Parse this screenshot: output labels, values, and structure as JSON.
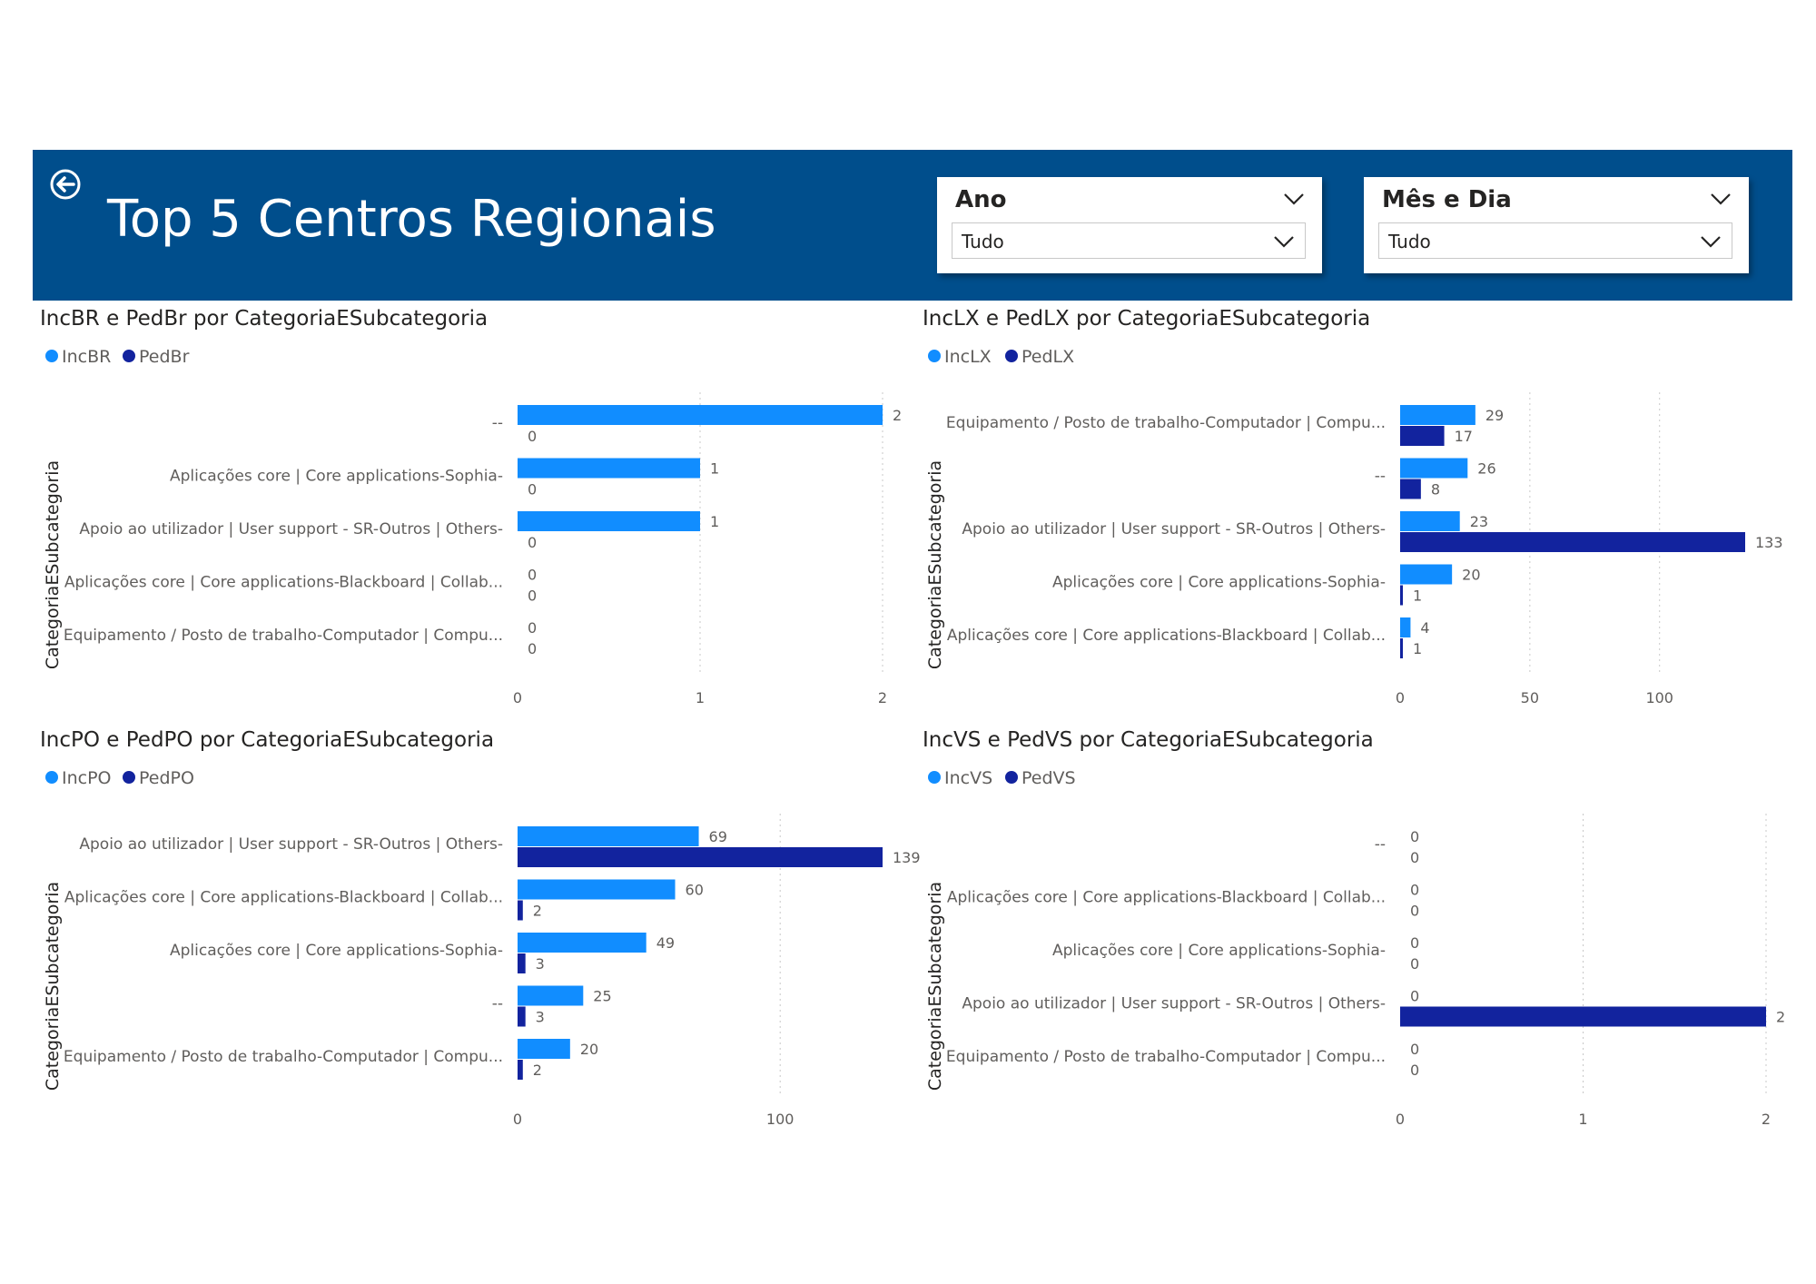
{
  "header": {
    "title": "Top 5 Centros Regionais",
    "back_icon": "back-arrow-icon",
    "bg_color": "#004E8C"
  },
  "slicers": [
    {
      "title": "Ano",
      "value": "Tudo"
    },
    {
      "title": "Mês e Dia",
      "value": "Tudo"
    }
  ],
  "colors": {
    "inc": "#118DFF",
    "ped": "#12239E"
  },
  "chart_data": [
    {
      "type": "bar",
      "orientation": "horizontal",
      "title": "IncBR e PedBr por CategoriaESubcategoria",
      "ylabel": "CategoriaESubcategoria",
      "categories": [
        "--",
        "Aplicações core | Core applications-Sophia-",
        "Apoio ao utilizador | User support - SR-Outros | Others-",
        "Aplicações core | Core applications-Blackboard | Collab...",
        "Equipamento / Posto de trabalho-Computador | Compu..."
      ],
      "series": [
        {
          "name": "IncBR",
          "values": [
            2,
            1,
            1,
            0,
            0
          ]
        },
        {
          "name": "PedBr",
          "values": [
            0,
            0,
            0,
            0,
            0
          ]
        }
      ],
      "xlim": [
        0,
        2
      ],
      "xticks": [
        0,
        1,
        2
      ],
      "legend": "top-left"
    },
    {
      "type": "bar",
      "orientation": "horizontal",
      "title": "IncLX e PedLX por CategoriaESubcategoria",
      "ylabel": "CategoriaESubcategoria",
      "categories": [
        "Equipamento / Posto de trabalho-Computador | Compu...",
        "--",
        "Apoio ao utilizador | User support - SR-Outros | Others-",
        "Aplicações core | Core applications-Sophia-",
        "Aplicações core | Core applications-Blackboard | Collab..."
      ],
      "series": [
        {
          "name": "IncLX",
          "values": [
            29,
            26,
            23,
            20,
            4
          ]
        },
        {
          "name": "PedLX",
          "values": [
            17,
            8,
            133,
            1,
            1
          ]
        }
      ],
      "xlim": [
        0,
        133
      ],
      "xticks": [
        0,
        50,
        100
      ],
      "legend": "top-left"
    },
    {
      "type": "bar",
      "orientation": "horizontal",
      "title": "IncPO e PedPO por CategoriaESubcategoria",
      "ylabel": "CategoriaESubcategoria",
      "categories": [
        "Apoio ao utilizador | User support - SR-Outros | Others-",
        "Aplicações core | Core applications-Blackboard | Collab...",
        "Aplicações core | Core applications-Sophia-",
        "--",
        "Equipamento / Posto de trabalho-Computador | Compu..."
      ],
      "series": [
        {
          "name": "IncPO",
          "values": [
            69,
            60,
            49,
            25,
            20
          ]
        },
        {
          "name": "PedPO",
          "values": [
            139,
            2,
            3,
            3,
            2
          ]
        }
      ],
      "xlim": [
        0,
        139
      ],
      "xticks": [
        0,
        100
      ],
      "legend": "top-left"
    },
    {
      "type": "bar",
      "orientation": "horizontal",
      "title": "IncVS e PedVS por CategoriaESubcategoria",
      "ylabel": "CategoriaESubcategoria",
      "categories": [
        "--",
        "Aplicações core | Core applications-Blackboard | Collab...",
        "Aplicações core | Core applications-Sophia-",
        "Apoio ao utilizador | User support - SR-Outros | Others-",
        "Equipamento / Posto de trabalho-Computador | Compu..."
      ],
      "series": [
        {
          "name": "IncVS",
          "values": [
            0,
            0,
            0,
            0,
            0
          ]
        },
        {
          "name": "PedVS",
          "values": [
            0,
            0,
            0,
            2,
            0
          ]
        }
      ],
      "xlim": [
        0,
        2
      ],
      "xticks": [
        0,
        1,
        2
      ],
      "legend": "top-left"
    }
  ]
}
